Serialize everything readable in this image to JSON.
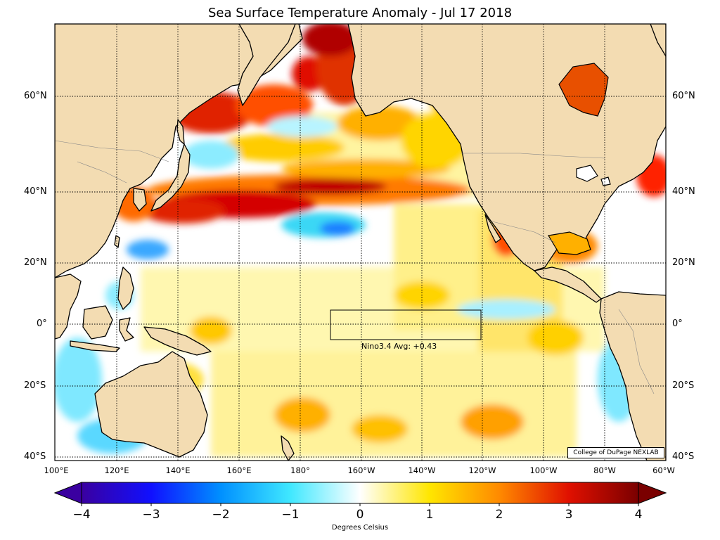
{
  "title": "Sea Surface Temperature Anomaly - Jul 17 2018",
  "lat_labels": [
    "60°N",
    "40°N",
    "20°N",
    "0°",
    "20°S",
    "40°S"
  ],
  "lon_labels": [
    "100°E",
    "120°E",
    "140°E",
    "160°E",
    "180°",
    "160°W",
    "140°W",
    "120°W",
    "100°W",
    "80°W",
    "60°W"
  ],
  "nino_box": {
    "label": "Nino3.4 Avg: +0.43"
  },
  "credit": "College of DuPage NEXLAB",
  "colorbar": {
    "ticks": [
      "−4",
      "−3",
      "−2",
      "−1",
      "0",
      "1",
      "2",
      "3",
      "4"
    ],
    "label": "Degrees Celsius",
    "min": -4,
    "max": 4
  },
  "colors": {
    "land": "#f3dcb2",
    "ocean_neutral": "#ffffff",
    "warm": "#ffe000",
    "hot": "#d40000",
    "cool": "#3bd7f5",
    "cold": "#1c7fff"
  }
}
